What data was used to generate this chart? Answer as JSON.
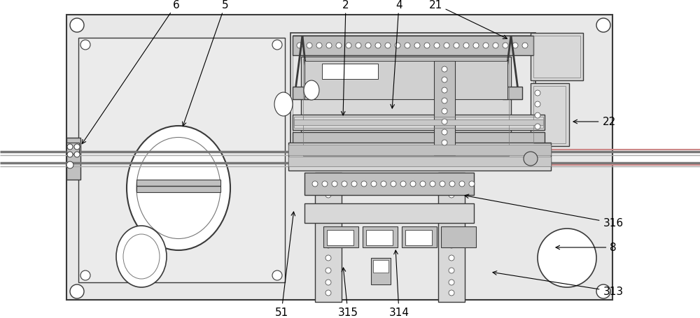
{
  "bg_color": "#ffffff",
  "dark": "#3a3a3a",
  "mid": "#777777",
  "light": "#aaaaaa",
  "fill_plate": "#e8e8e8",
  "fill_box": "#d8d8d8",
  "fill_dark": "#c0c0c0",
  "fill_white": "#ffffff",
  "line_pink": "#cc8888",
  "figw": 10.0,
  "figh": 4.56
}
